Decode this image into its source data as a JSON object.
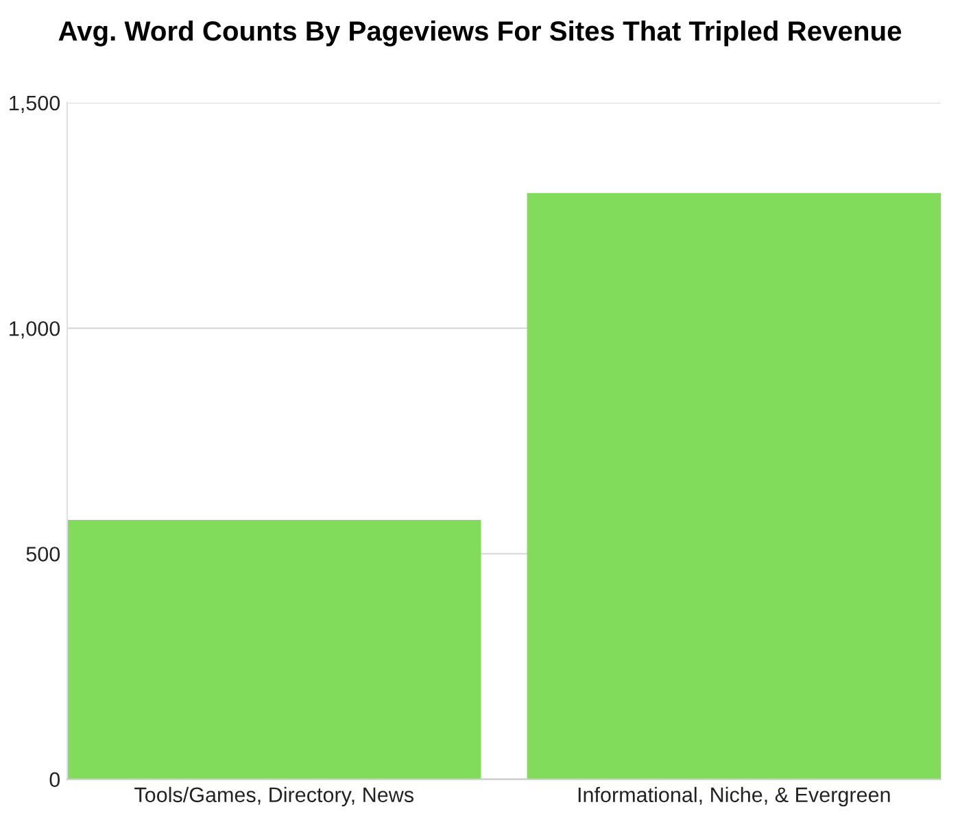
{
  "chart_data": {
    "type": "bar",
    "title": "Avg. Word Counts By Pageviews For Sites That Tripled Revenue",
    "categories": [
      "Tools/Games, Directory, News",
      "Informational, Niche, & Evergreen"
    ],
    "values": [
      575,
      1300
    ],
    "color": "#82dc5b",
    "ylim": [
      0,
      1500
    ],
    "yticks": [
      {
        "value": 0,
        "label": "0"
      },
      {
        "value": 500,
        "label": "500"
      },
      {
        "value": 1000,
        "label": "1,000"
      },
      {
        "value": 1500,
        "label": "1,500"
      }
    ],
    "grid": "y"
  }
}
